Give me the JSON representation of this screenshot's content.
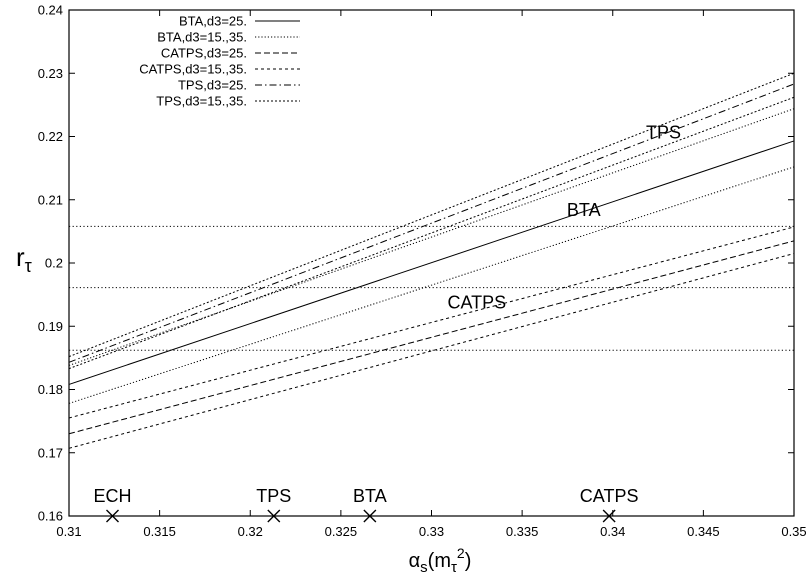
{
  "chart_data": {
    "type": "line",
    "xlabel": "αs(mτ2)",
    "ylabel": "rτ",
    "xlim": [
      0.31,
      0.35
    ],
    "ylim": [
      0.16,
      0.24
    ],
    "x_ticks": [
      "0.31",
      "0.315",
      "0.32",
      "0.325",
      "0.33",
      "0.335",
      "0.34",
      "0.345",
      "0.35"
    ],
    "y_ticks": [
      "0.16",
      "0.17",
      "0.18",
      "0.19",
      "0.2",
      "0.21",
      "0.22",
      "0.23",
      "0.24"
    ],
    "grid": false,
    "legend_position": "top-left",
    "series": [
      {
        "name": "BTA,d3=25.",
        "style": "solid",
        "lines": [
          [
            [
              0.31,
              0.1808
            ],
            [
              0.35,
              0.2193
            ]
          ]
        ]
      },
      {
        "name": "BTA,d3=15.,35.",
        "style": "dotted",
        "lines": [
          [
            [
              0.31,
              0.1778
            ],
            [
              0.35,
              0.2152
            ]
          ],
          [
            [
              0.31,
              0.1838
            ],
            [
              0.35,
              0.2244
            ]
          ]
        ]
      },
      {
        "name": "CATPS,d3=25.",
        "style": "dashed",
        "lines": [
          [
            [
              0.31,
              0.173
            ],
            [
              0.35,
              0.2035
            ]
          ]
        ]
      },
      {
        "name": "CATPS,d3=15.,35.",
        "style": "short-dashed",
        "lines": [
          [
            [
              0.31,
              0.1707
            ],
            [
              0.35,
              0.2015
            ]
          ],
          [
            [
              0.31,
              0.1755
            ],
            [
              0.35,
              0.2057
            ]
          ]
        ]
      },
      {
        "name": "TPS,d3=25.",
        "style": "dash-dot",
        "lines": [
          [
            [
              0.31,
              0.1843
            ],
            [
              0.35,
              0.2283
            ]
          ]
        ]
      },
      {
        "name": "TPS,d3=15.,35.",
        "style": "fine-dashed",
        "lines": [
          [
            [
              0.31,
              0.1833
            ],
            [
              0.35,
              0.2262
            ]
          ],
          [
            [
              0.31,
              0.1852
            ],
            [
              0.35,
              0.23
            ]
          ]
        ]
      }
    ],
    "horizontal_lines": [
      0.1862,
      0.1961,
      0.2058
    ],
    "annotations": [
      {
        "text": "TPS",
        "x": 0.3428,
        "y": 0.2197
      },
      {
        "text": "BTA",
        "x": 0.3384,
        "y": 0.2074
      },
      {
        "text": "CATPS",
        "x": 0.3325,
        "y": 0.1928
      }
    ],
    "markers": [
      {
        "label": "ECH",
        "x": 0.3124,
        "y": 0.16
      },
      {
        "label": "TPS",
        "x": 0.3213,
        "y": 0.16
      },
      {
        "label": "BTA",
        "x": 0.3266,
        "y": 0.16
      },
      {
        "label": "CATPS",
        "x": 0.3398,
        "y": 0.16
      }
    ]
  }
}
